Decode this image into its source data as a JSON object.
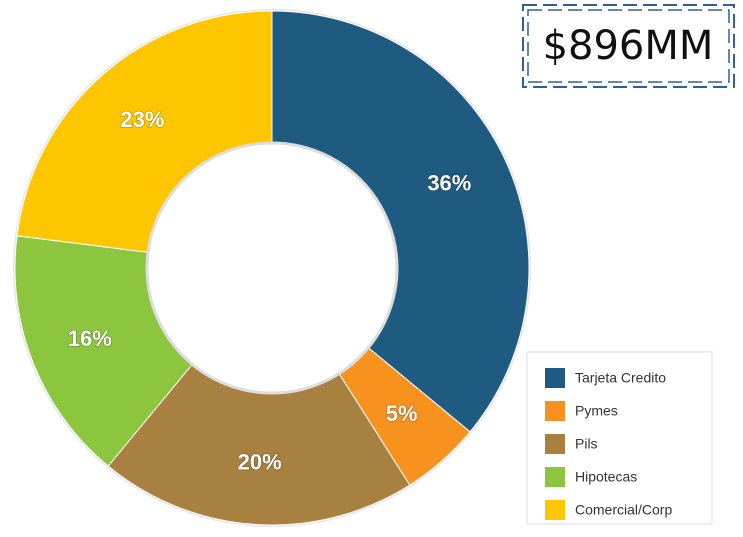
{
  "chart_data": {
    "type": "donut",
    "annotation": "$896MM",
    "categories": [
      "Tarjeta Credito",
      "Pymes",
      "Pils",
      "Hipotecas",
      "Comercial/Corp"
    ],
    "values": [
      36,
      5,
      20,
      16,
      23
    ],
    "value_labels": [
      "36%",
      "5%",
      "20%",
      "16%",
      "23%"
    ],
    "colors": [
      "#1f5a80",
      "#f7921e",
      "#a8803f",
      "#8cc63f",
      "#fdc600"
    ],
    "legend": "bottom-right"
  }
}
